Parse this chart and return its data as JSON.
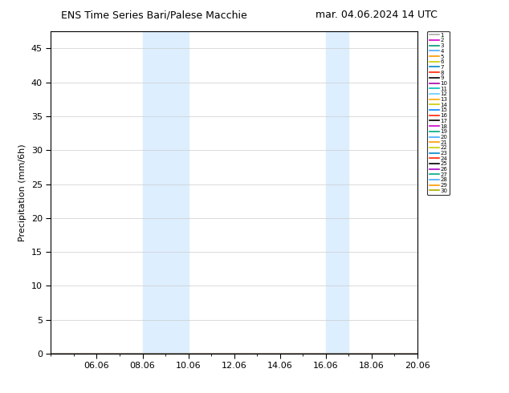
{
  "title_left": "ENS Time Series Bari/Palese Macchie",
  "title_right": "mar. 04.06.2024 14 UTC",
  "ylabel": "Precipitation (mm/6h)",
  "ylim": [
    0,
    47.5
  ],
  "yticks": [
    0,
    5,
    10,
    15,
    20,
    25,
    30,
    35,
    40,
    45
  ],
  "xlim": [
    4,
    20
  ],
  "xtick_labels": [
    "06.06",
    "08.06",
    "10.06",
    "12.06",
    "14.06",
    "16.06",
    "18.06",
    "20.06"
  ],
  "xtick_positions": [
    6,
    8,
    10,
    12,
    14,
    16,
    18,
    20
  ],
  "shaded_regions": [
    {
      "xmin": 8,
      "xmax": 10
    },
    {
      "xmin": 16,
      "xmax": 17
    }
  ],
  "shade_color": "#ddeeff",
  "num_members": 30,
  "member_colors": [
    "#aaaaaa",
    "#cc00cc",
    "#009977",
    "#44aaff",
    "#ff9900",
    "#cccc00",
    "#0088cc",
    "#ff2200",
    "#000000",
    "#aa00aa",
    "#00bbbb",
    "#66ccff",
    "#ffaa00",
    "#cccc00",
    "#0088ff",
    "#ff2200",
    "#000000",
    "#cc00cc",
    "#00aa88",
    "#44aaff",
    "#ff9900",
    "#cccc00",
    "#0088cc",
    "#ff2200",
    "#000000",
    "#aa00cc",
    "#00aa88",
    "#44aaff",
    "#ff9900",
    "#aaaa00"
  ],
  "background_color": "#ffffff",
  "grid_color": "#cccccc",
  "title_fontsize": 9,
  "axis_fontsize": 8,
  "legend_fontsize": 5
}
